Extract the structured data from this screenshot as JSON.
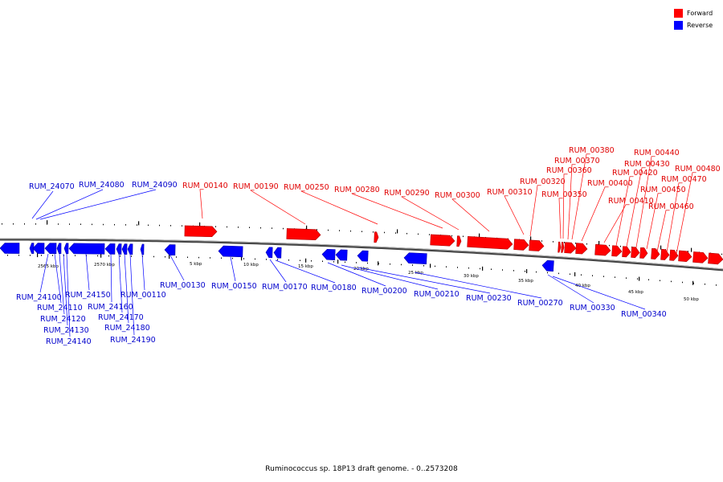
{
  "colors": {
    "forward": "#ff0000",
    "reverse": "#0000ff",
    "backbone": "#888888"
  },
  "legend": [
    {
      "label": "Forward",
      "color": "#ff0000"
    },
    {
      "label": "Reverse",
      "color": "#0000ff"
    }
  ],
  "caption": "Ruminococcus sp. 18P13 draft genome. - 0..2573208",
  "scale_labels": [
    "2565 kbp",
    "2570 kbp",
    "5 kbp",
    "10 kbp",
    "15 kbp",
    "20 kbp",
    "25 kbp",
    "30 kbp",
    "35 kbp",
    "40 kbp",
    "45 kbp",
    "50 kbp"
  ],
  "forward_genes": [
    "RUM_00140",
    "RUM_00190",
    "RUM_00250",
    "RUM_00280",
    "RUM_00290",
    "RUM_00300",
    "RUM_00310",
    "RUM_00320",
    "RUM_00350",
    "RUM_00360",
    "RUM_00370",
    "RUM_00380",
    "RUM_00400",
    "RUM_00410",
    "RUM_00420",
    "RUM_00430",
    "RUM_00440",
    "RUM_00450",
    "RUM_00460",
    "RUM_00470",
    "RUM_00480"
  ],
  "reverse_genes": [
    "RUM_24070",
    "RUM_24080",
    "RUM_24090",
    "RUM_24100",
    "RUM_24110",
    "RUM_24120",
    "RUM_24130",
    "RUM_24140",
    "RUM_24150",
    "RUM_24160",
    "RUM_24170",
    "RUM_24180",
    "RUM_24190",
    "RUM_00110",
    "RUM_00130",
    "RUM_00150",
    "RUM_00170",
    "RUM_00180",
    "RUM_00200",
    "RUM_00210",
    "RUM_00230",
    "RUM_00270",
    "RUM_00330",
    "RUM_00340"
  ]
}
